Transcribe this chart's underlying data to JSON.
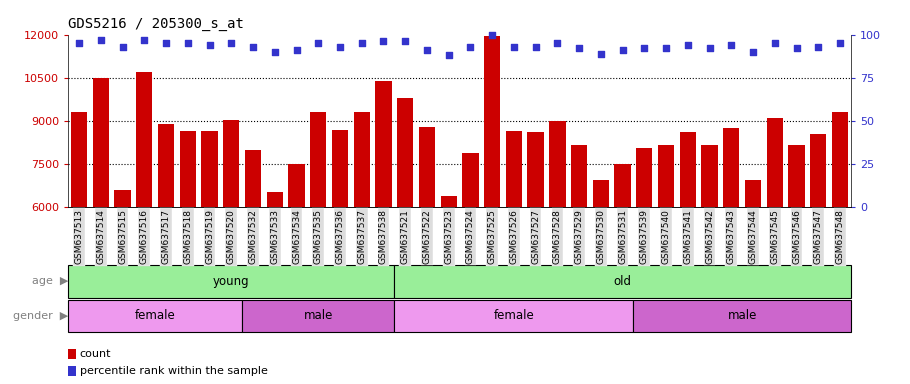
{
  "title": "GDS5216 / 205300_s_at",
  "categories": [
    "GSM637513",
    "GSM637514",
    "GSM637515",
    "GSM637516",
    "GSM637517",
    "GSM637518",
    "GSM637519",
    "GSM637520",
    "GSM637532",
    "GSM637533",
    "GSM637534",
    "GSM637535",
    "GSM637536",
    "GSM637537",
    "GSM637538",
    "GSM637521",
    "GSM637522",
    "GSM637523",
    "GSM637524",
    "GSM637525",
    "GSM637526",
    "GSM637527",
    "GSM637528",
    "GSM637529",
    "GSM637530",
    "GSM637531",
    "GSM637539",
    "GSM637540",
    "GSM637541",
    "GSM637542",
    "GSM637543",
    "GSM637544",
    "GSM637545",
    "GSM637546",
    "GSM637547",
    "GSM637548"
  ],
  "bar_values": [
    9300,
    10500,
    6600,
    10700,
    8900,
    8650,
    8650,
    9050,
    8000,
    6550,
    7500,
    9300,
    8700,
    9300,
    10400,
    9800,
    8800,
    6400,
    7900,
    11950,
    8650,
    8600,
    9000,
    8150,
    6950,
    7500,
    8050,
    8150,
    8600,
    8150,
    8750,
    6950,
    9100,
    8150,
    8550,
    9300
  ],
  "percentile_values": [
    95,
    97,
    93,
    97,
    95,
    95,
    94,
    95,
    93,
    90,
    91,
    95,
    93,
    95,
    96,
    96,
    91,
    88,
    93,
    100,
    93,
    93,
    95,
    92,
    89,
    91,
    92,
    92,
    94,
    92,
    94,
    90,
    95,
    92,
    93,
    95
  ],
  "ylim_left": [
    6000,
    12000
  ],
  "ylim_right": [
    0,
    100
  ],
  "yticks_left": [
    6000,
    7500,
    9000,
    10500,
    12000
  ],
  "yticks_right": [
    0,
    25,
    50,
    75,
    100
  ],
  "bar_color": "#cc0000",
  "dot_color": "#3333cc",
  "age_groups": [
    {
      "label": "young",
      "start": 0,
      "end": 15,
      "color": "#99ee99"
    },
    {
      "label": "old",
      "start": 15,
      "end": 36,
      "color": "#99ee99"
    }
  ],
  "gender_groups": [
    {
      "label": "female",
      "start": 0,
      "end": 8,
      "color": "#ee99ee"
    },
    {
      "label": "male",
      "start": 8,
      "end": 15,
      "color": "#cc66cc"
    },
    {
      "label": "female",
      "start": 15,
      "end": 26,
      "color": "#ee99ee"
    },
    {
      "label": "male",
      "start": 26,
      "end": 36,
      "color": "#cc66cc"
    }
  ],
  "grid_color": "#000000",
  "background_color": "#ffffff",
  "title_fontsize": 10,
  "tick_fontsize": 6.5
}
